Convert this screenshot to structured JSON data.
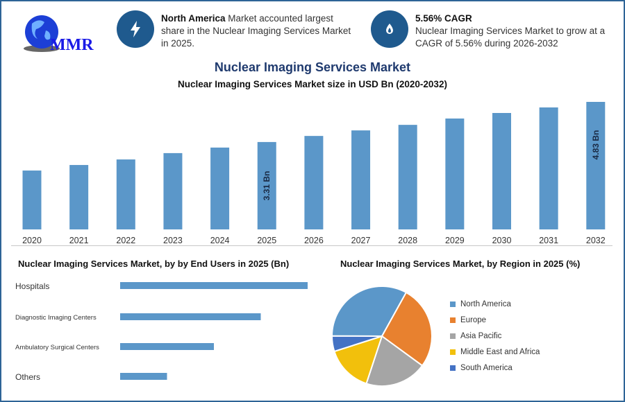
{
  "logo": {
    "text": "MMR"
  },
  "info_left": {
    "icon": "lightning-bolt-icon",
    "bold": "North America",
    "text": " Market accounted largest share in the Nuclear Imaging Services Market in 2025."
  },
  "info_right": {
    "icon": "flame-drop-icon",
    "bold": "5.56% CAGR",
    "text": "Nuclear Imaging Services Market to grow at a CAGR of 5.56% during 2026-2032"
  },
  "chart_data": [
    {
      "type": "bar",
      "title": "Nuclear Imaging Services Market",
      "subtitle": "Nuclear Imaging Services Market size in USD Bn (2020-2032)",
      "categories": [
        "2020",
        "2021",
        "2022",
        "2023",
        "2024",
        "2025",
        "2026",
        "2027",
        "2028",
        "2029",
        "2030",
        "2031",
        "2032"
      ],
      "values": [
        2.23,
        2.44,
        2.65,
        2.89,
        3.1,
        3.31,
        3.54,
        3.75,
        3.96,
        4.2,
        4.41,
        4.62,
        4.83
      ],
      "data_labels": {
        "2025": "3.31 Bn",
        "2032": "4.83 Bn"
      },
      "color": "#5b97c9",
      "grid": false
    },
    {
      "type": "bar",
      "orientation": "horizontal",
      "title": "Nuclear Imaging Services Market, by by End Users in 2025 (Bn)",
      "categories": [
        "Hospitals",
        "Diagnostic Imaging Centers",
        "Ambulatory Surgical Centers",
        "Others"
      ],
      "values": [
        1.32,
        0.99,
        0.66,
        0.33
      ],
      "color": "#5b97c9"
    },
    {
      "type": "pie",
      "title": "Nuclear Imaging Services Market, by Region in 2025 (%)",
      "categories": [
        "North America",
        "Europe",
        "Asia Pacific",
        "Middle East and Africa",
        "South America"
      ],
      "values": [
        33,
        27,
        20,
        15,
        5
      ],
      "colors": [
        "#5b97c9",
        "#e8812f",
        "#a5a5a5",
        "#f2c00c",
        "#4472c4"
      ],
      "legend": "right"
    }
  ]
}
